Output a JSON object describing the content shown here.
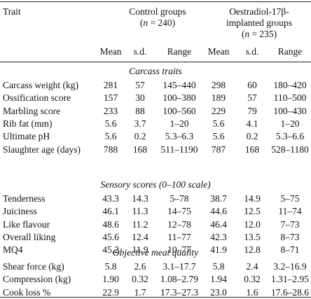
{
  "header": {
    "trait": "Trait",
    "control": {
      "line1": "Control  groups",
      "n_var": "n",
      "n_rest": " = 240)",
      "n_open": "("
    },
    "oestradiol": {
      "line1": "Oestradiol-17β-",
      "line2": "implanted groups",
      "n_open": "(",
      "n_var": "n",
      "n_rest": " = 235)"
    },
    "sub": [
      "Mean",
      "s.d.",
      "Range",
      "Mean",
      "s.d.",
      "Range"
    ]
  },
  "sections": [
    {
      "title": "Carcass traits",
      "rows": [
        {
          "trait": "Carcass weight (kg)",
          "cells": [
            "281",
            "57",
            "145–440",
            "298",
            "60",
            "180–420"
          ]
        },
        {
          "trait": "Ossification score",
          "cells": [
            "157",
            "30",
            "100–380",
            "189",
            "57",
            "110–500"
          ]
        },
        {
          "trait": "Marbling score",
          "cells": [
            "233",
            "88",
            "100–560",
            "229",
            "79",
            "100–430"
          ]
        },
        {
          "trait": "Rib fat (mm)",
          "cells": [
            "5.6",
            "3.7",
            "1–20",
            "5.6",
            "4.1",
            "1–20"
          ]
        },
        {
          "trait": "Ultimate pH",
          "cells": [
            "5.6",
            "0.2",
            "5.3–6.3",
            "5.6",
            "0.2",
            "5.3–6.6"
          ]
        },
        {
          "trait": "Slaughter age (days)",
          "cells": [
            "788",
            "168",
            "511–1190",
            "787",
            "168",
            "528–1180"
          ]
        }
      ]
    },
    {
      "title": "Sensory scores (0–100 scale)",
      "rows": [
        {
          "trait": "Tenderness",
          "cells": [
            "43.3",
            "14.3",
            "5–78",
            "38.7",
            "14.9",
            "5–75"
          ]
        },
        {
          "trait": "Juiciness",
          "cells": [
            "46.1",
            "11.3",
            "14–75",
            "44.6",
            "12.5",
            "11–74"
          ]
        },
        {
          "trait": "Like flavour",
          "cells": [
            "48.6",
            "11.2",
            "12–78",
            "46.4",
            "12.0",
            "7–73"
          ]
        },
        {
          "trait": "Overall liking",
          "cells": [
            "45.6",
            "12.4",
            "11–77",
            "42.3",
            "13.5",
            "8–73"
          ]
        },
        {
          "trait": "MQ4",
          "cells": [
            "45.2",
            "11.9",
            "10–77",
            "41.9",
            "12.8",
            "8–71"
          ]
        }
      ]
    },
    {
      "title": "Objective meat quality",
      "rows": [
        {
          "trait": "Shear force (kg)",
          "cells": [
            "5.8",
            "2.6",
            "3.1–17.7",
            "5.8",
            "2.4",
            "3.2–16.9"
          ]
        },
        {
          "trait": "Compression (kg)",
          "cells": [
            "1.90",
            "0.32",
            "1.08–2.79",
            "1.94",
            "0.32",
            "1.31–2.95"
          ]
        },
        {
          "trait": "Cook loss %",
          "cells": [
            "22.9",
            "1.7",
            "17.3–27.3",
            "23.0",
            "1.6",
            "17.6–28.6"
          ]
        }
      ]
    }
  ]
}
